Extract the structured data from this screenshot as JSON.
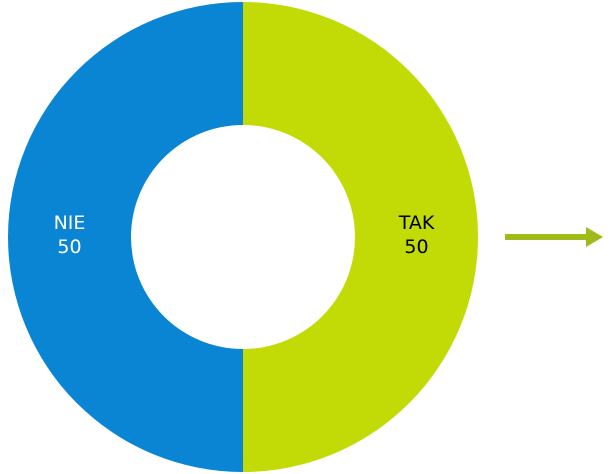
{
  "chart_data": {
    "type": "pie",
    "variant": "donut",
    "slices": [
      {
        "label": "TAK",
        "value": 50,
        "color": "#C2DB06",
        "text_color": "#000000"
      },
      {
        "label": "NIE",
        "value": 50,
        "color": "#0A85D3",
        "text_color": "#ffffff"
      }
    ],
    "legend": "none"
  },
  "arrow": {
    "color": "#9EBB1A",
    "direction": "right"
  }
}
